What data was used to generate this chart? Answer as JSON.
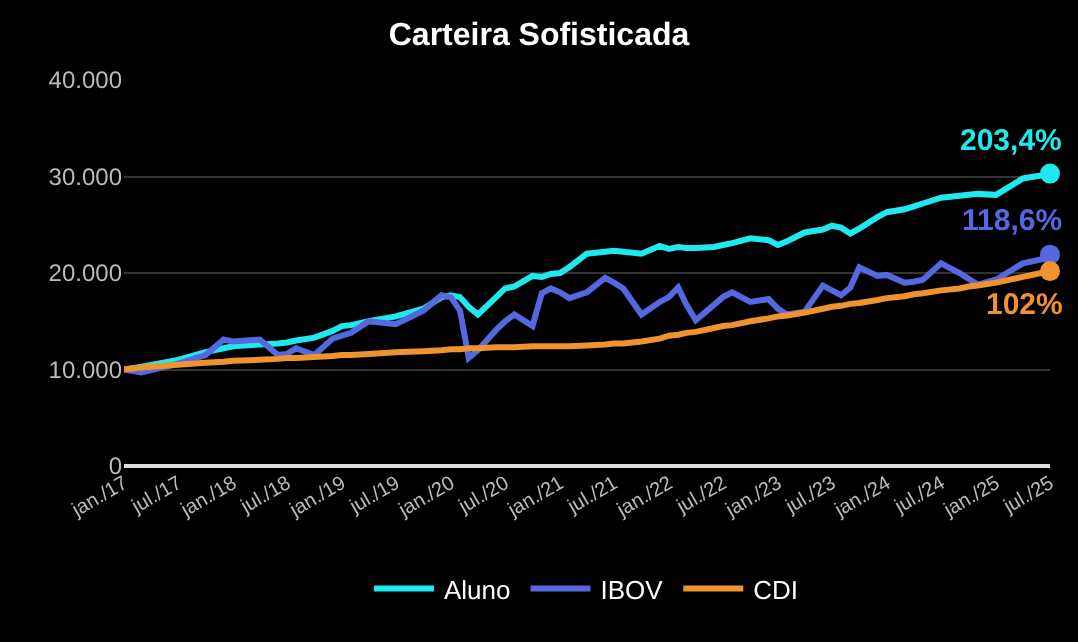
{
  "chart_data": {
    "type": "line",
    "title": "Carteira Sofisticada",
    "x": [
      "2017-01",
      "2017-03",
      "2017-07",
      "2017-10",
      "2017-12",
      "2018-01",
      "2018-04",
      "2018-06",
      "2018-07",
      "2018-08",
      "2018-10",
      "2018-12",
      "2019-01",
      "2019-02",
      "2019-04",
      "2019-07",
      "2019-10",
      "2019-12",
      "2020-01",
      "2020-02",
      "2020-03",
      "2020-04",
      "2020-06",
      "2020-07",
      "2020-08",
      "2020-10",
      "2020-11",
      "2020-12",
      "2021-01",
      "2021-02",
      "2021-04",
      "2021-06",
      "2021-07",
      "2021-08",
      "2021-10",
      "2021-12",
      "2022-01",
      "2022-02",
      "2022-03",
      "2022-04",
      "2022-06",
      "2022-07",
      "2022-08",
      "2022-10",
      "2022-12",
      "2023-01",
      "2023-02",
      "2023-04",
      "2023-06",
      "2023-07",
      "2023-08",
      "2023-09",
      "2023-10",
      "2023-12",
      "2024-01",
      "2024-03",
      "2024-04",
      "2024-05",
      "2024-07",
      "2024-09",
      "2024-10",
      "2024-11",
      "2025-01",
      "2025-04",
      "2025-06",
      "2025-07"
    ],
    "series": [
      {
        "name": "Aluno",
        "color": "#1de9ef",
        "values": [
          10000,
          10300,
          11000,
          11800,
          12200,
          12400,
          12600,
          12700,
          12800,
          13000,
          13300,
          14000,
          14500,
          14600,
          15000,
          15500,
          16300,
          17500,
          17700,
          17500,
          16500,
          15700,
          17500,
          18400,
          18600,
          19700,
          19600,
          19900,
          20000,
          20600,
          22000,
          22200,
          22300,
          22200,
          22000,
          22800,
          22500,
          22700,
          22600,
          22600,
          22700,
          22900,
          23100,
          23600,
          23400,
          22900,
          23300,
          24200,
          24500,
          24900,
          24700,
          24100,
          24600,
          25800,
          26300,
          26600,
          26900,
          27200,
          27800,
          28000,
          28100,
          28200,
          28100,
          29800,
          30100,
          30300
        ]
      },
      {
        "name": "IBOV",
        "color": "#5468e0",
        "values": [
          10000,
          9700,
          10600,
          11500,
          13100,
          12900,
          13100,
          11500,
          11600,
          12200,
          11500,
          13200,
          13500,
          13800,
          15000,
          14700,
          16100,
          17700,
          17500,
          16100,
          11200,
          12000,
          14100,
          15000,
          15700,
          14500,
          17900,
          18400,
          18000,
          17400,
          18000,
          19500,
          19000,
          18400,
          15700,
          17000,
          17500,
          18500,
          16700,
          15100,
          16700,
          17500,
          18000,
          17000,
          17300,
          16300,
          15700,
          16000,
          18700,
          18200,
          17700,
          18500,
          20600,
          19700,
          19800,
          19000,
          19100,
          19300,
          21000,
          20000,
          19400,
          18800,
          19300,
          21000,
          21400,
          21900
        ]
      },
      {
        "name": "CDI",
        "color": "#f0922e",
        "values": [
          10000,
          10200,
          10500,
          10700,
          10800,
          10900,
          11000,
          11100,
          11200,
          11200,
          11300,
          11400,
          11500,
          11500,
          11600,
          11800,
          11900,
          12000,
          12100,
          12100,
          12200,
          12200,
          12300,
          12300,
          12300,
          12400,
          12400,
          12400,
          12400,
          12400,
          12500,
          12600,
          12700,
          12700,
          12900,
          13200,
          13500,
          13600,
          13800,
          13900,
          14300,
          14500,
          14600,
          15000,
          15300,
          15500,
          15600,
          15900,
          16300,
          16500,
          16600,
          16800,
          16900,
          17200,
          17400,
          17600,
          17800,
          17900,
          18200,
          18400,
          18600,
          18700,
          19000,
          19600,
          20000,
          20200
        ]
      }
    ],
    "annotations": [
      {
        "text": "203,4%",
        "x": "2025-07",
        "y": 30300
      },
      {
        "text": "118,6%",
        "x": "2025-07",
        "y": 21900
      },
      {
        "text": "102%",
        "x": "2025-07",
        "y": 20200
      }
    ],
    "ylim": [
      0,
      40000
    ],
    "yticks": [
      0,
      {
        "value": 10000,
        "label": "10.000"
      },
      {
        "value": 20000,
        "label": "20.000"
      },
      {
        "value": 30000,
        "label": "30.000"
      },
      {
        "value": 40000,
        "label": "40.000"
      }
    ],
    "xlim": [
      "2017-01",
      "2025-07"
    ],
    "xticks": [
      {
        "value": "2017-01",
        "label": "jan./17"
      },
      {
        "value": "2017-07",
        "label": "jul./17"
      },
      {
        "value": "2018-01",
        "label": "jan./18"
      },
      {
        "value": "2018-07",
        "label": "jul./18"
      },
      {
        "value": "2019-01",
        "label": "jan./19"
      },
      {
        "value": "2019-07",
        "label": "jul./19"
      },
      {
        "value": "2020-01",
        "label": "jan./20"
      },
      {
        "value": "2020-07",
        "label": "jul./20"
      },
      {
        "value": "2021-01",
        "label": "jan./21"
      },
      {
        "value": "2021-07",
        "label": "jul./21"
      },
      {
        "value": "2022-01",
        "label": "jan./22"
      },
      {
        "value": "2022-07",
        "label": "jul./22"
      },
      {
        "value": "2023-01",
        "label": "jan./23"
      },
      {
        "value": "2023-07",
        "label": "jul./23"
      },
      {
        "value": "2024-01",
        "label": "jan./24"
      },
      {
        "value": "2024-07",
        "label": "jul./24"
      },
      {
        "value": "2025-01",
        "label": "jan./25"
      },
      {
        "value": "2025-07",
        "label": "jul./25"
      }
    ],
    "grid": "y",
    "legend": "bottom",
    "marker": "none",
    "line_style": "solid"
  }
}
